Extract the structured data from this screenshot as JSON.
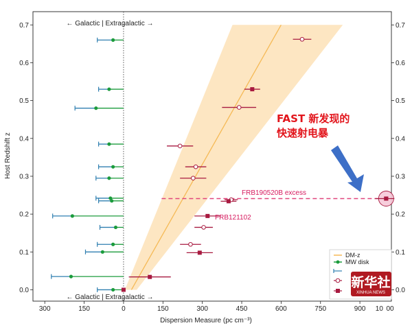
{
  "chart_data": {
    "type": "scatter",
    "xlabel": "Dispersion Measure (pc cm⁻³)",
    "ylabel": "Host Redshift z",
    "xlim": [
      -345,
      1020
    ],
    "ylim": [
      -0.03,
      0.735
    ],
    "x_ticks": [
      {
        "value": -300,
        "label": "300"
      },
      {
        "value": -150,
        "label": "150"
      },
      {
        "value": 0,
        "label": "0"
      },
      {
        "value": 150,
        "label": "150"
      },
      {
        "value": 300,
        "label": "300"
      },
      {
        "value": 450,
        "label": "450"
      },
      {
        "value": 600,
        "label": "600"
      },
      {
        "value": 750,
        "label": "750"
      },
      {
        "value": 900,
        "label": "900"
      }
    ],
    "x_tick_overlap_labels": [
      "10",
      "00"
    ],
    "y_ticks": [
      {
        "value": 0.0,
        "label": "0.0"
      },
      {
        "value": 0.1,
        "label": "0.1"
      },
      {
        "value": 0.2,
        "label": "0.2"
      },
      {
        "value": 0.3,
        "label": "0.3"
      },
      {
        "value": 0.4,
        "label": "0.4"
      },
      {
        "value": 0.5,
        "label": "0.5"
      },
      {
        "value": 0.6,
        "label": "0.6"
      },
      {
        "value": 0.7,
        "label": "0.7"
      }
    ],
    "region_note": "← Galactic | Extragalactic →",
    "dm_z_band": {
      "line": [
        [
          30,
          0.0
        ],
        [
          600,
          0.7
        ]
      ],
      "upper": [
        [
          5,
          0.0
        ],
        [
          415,
          0.7
        ]
      ],
      "lower": [
        [
          50,
          0.0
        ],
        [
          835,
          0.7
        ]
      ]
    },
    "mw_disk": [
      {
        "x": -40,
        "y": 0.66,
        "xerr": [
          60,
          0
        ]
      },
      {
        "x": -55,
        "y": 0.53,
        "xerr": [
          40,
          0
        ]
      },
      {
        "x": -105,
        "y": 0.48,
        "xerr": [
          80,
          0
        ]
      },
      {
        "x": -55,
        "y": 0.385,
        "xerr": [
          40,
          0
        ]
      },
      {
        "x": -40,
        "y": 0.325,
        "xerr": [
          55,
          0
        ]
      },
      {
        "x": -55,
        "y": 0.295,
        "xerr": [
          50,
          0
        ]
      },
      {
        "x": -50,
        "y": 0.242,
        "xerr": [
          55,
          0
        ]
      },
      {
        "x": -45,
        "y": 0.235,
        "xerr": [
          50,
          0
        ]
      },
      {
        "x": -195,
        "y": 0.195,
        "xerr": [
          75,
          0
        ]
      },
      {
        "x": -30,
        "y": 0.165,
        "xerr": [
          60,
          0
        ]
      },
      {
        "x": -40,
        "y": 0.12,
        "xerr": [
          60,
          0
        ]
      },
      {
        "x": -80,
        "y": 0.1,
        "xerr": [
          65,
          0
        ]
      },
      {
        "x": -200,
        "y": 0.035,
        "xerr": [
          75,
          0
        ]
      },
      {
        "x": -40,
        "y": 0.0,
        "xerr": [
          60,
          0
        ]
      }
    ],
    "mw_halo": [
      {
        "x": 0,
        "y": 0.66,
        "xerr": [
          0,
          0
        ]
      },
      {
        "x": 0,
        "y": 0.53,
        "xerr": [
          0,
          0
        ]
      },
      {
        "x": 0,
        "y": 0.48,
        "xerr": [
          0,
          0
        ]
      },
      {
        "x": 0,
        "y": 0.385,
        "xerr": [
          0,
          0
        ]
      },
      {
        "x": 0,
        "y": 0.325,
        "xerr": [
          0,
          0
        ]
      },
      {
        "x": 0,
        "y": 0.295,
        "xerr": [
          0,
          0
        ]
      },
      {
        "x": 0,
        "y": 0.242,
        "xerr": [
          0,
          0
        ]
      },
      {
        "x": 0,
        "y": 0.235,
        "xerr": [
          0,
          0
        ]
      }
    ],
    "frb_open": [
      {
        "x": 680,
        "y": 0.662,
        "xerr": [
          35,
          35
        ]
      },
      {
        "x": 440,
        "y": 0.482,
        "xerr": [
          65,
          65
        ]
      },
      {
        "x": 215,
        "y": 0.38,
        "xerr": [
          50,
          50
        ]
      },
      {
        "x": 275,
        "y": 0.325,
        "xerr": [
          40,
          40
        ]
      },
      {
        "x": 265,
        "y": 0.295,
        "xerr": [
          50,
          50
        ]
      },
      {
        "x": 410,
        "y": 0.238,
        "xerr": [
          25,
          25
        ]
      },
      {
        "x": 305,
        "y": 0.165,
        "xerr": [
          35,
          35
        ]
      },
      {
        "x": 255,
        "y": 0.12,
        "xerr": [
          40,
          40
        ]
      }
    ],
    "frb_filled": [
      {
        "x": 490,
        "y": 0.53,
        "xerr": [
          30,
          30
        ]
      },
      {
        "x": 1000,
        "y": 0.241,
        "xerr": [
          0,
          0
        ]
      },
      {
        "x": 400,
        "y": 0.234,
        "xerr": [
          30,
          30
        ]
      },
      {
        "x": 320,
        "y": 0.195,
        "xerr": [
          50,
          50
        ]
      },
      {
        "x": 290,
        "y": 0.098,
        "xerr": [
          50,
          50
        ]
      },
      {
        "x": 100,
        "y": 0.034,
        "xerr": [
          80,
          80
        ]
      },
      {
        "x": 0,
        "y": 0.0,
        "xerr": [
          0,
          0
        ]
      }
    ],
    "frb190520b_excess_line": {
      "x": [
        145,
        1000
      ],
      "y": 0.241
    },
    "labels": {
      "frb190520b": "FRB190520B excess",
      "frb121102": "FRB121102"
    },
    "legend": [
      "DM-z",
      "MW disk"
    ],
    "colors": {
      "band": "#fde6c2",
      "line": "#f5b955",
      "disk": "#1b9b3c",
      "halo": "#2f7fb0",
      "frb": "#a81a40",
      "excess": "#e0457c",
      "highlight": "#f6c9d8"
    }
  },
  "annotation": {
    "line1": "FAST 新发现的",
    "line2": "快速射电暴",
    "arrow_color": "#3d6fc7",
    "text_color": "#e2141b"
  },
  "watermark": {
    "main": "新华社",
    "sub": "XINHUA NEWS"
  }
}
